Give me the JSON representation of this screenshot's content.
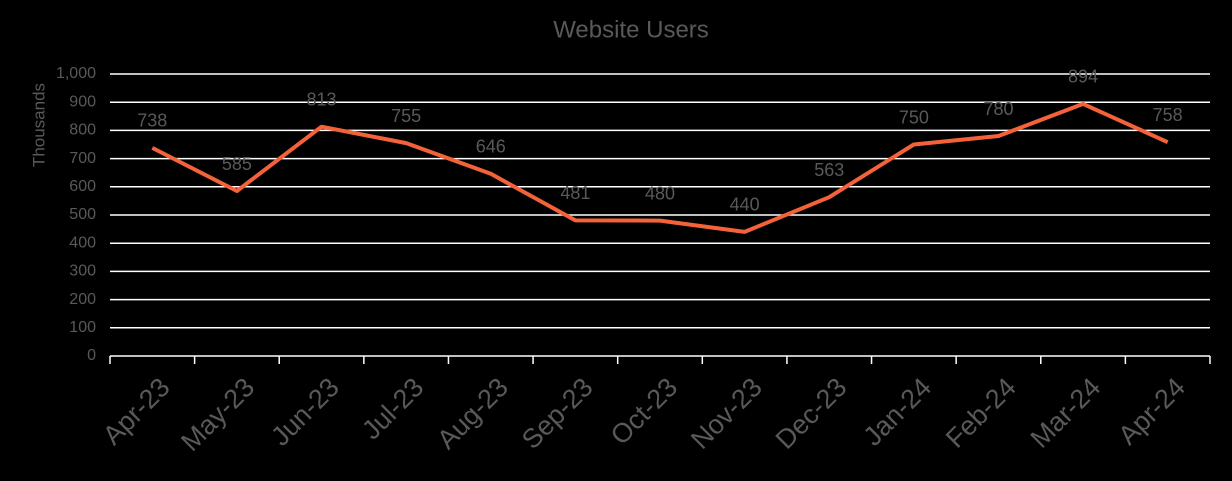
{
  "chart_data": {
    "type": "line",
    "title": "Website Users",
    "y_label": "Thousands",
    "categories": [
      "Apr-23",
      "May-23",
      "Jun-23",
      "Jul-23",
      "Aug-23",
      "Sep-23",
      "Oct-23",
      "Nov-23",
      "Dec-23",
      "Jan-24",
      "Feb-24",
      "Mar-24",
      "Apr-24"
    ],
    "values": [
      738,
      585,
      813,
      755,
      646,
      481,
      480,
      440,
      563,
      750,
      780,
      894,
      758
    ],
    "color": "#f4623a",
    "ylim": [
      0,
      1000
    ],
    "yticks": [
      0,
      100,
      200,
      300,
      400,
      500,
      600,
      700,
      800,
      900,
      {
        "value": 1000,
        "label": "1,000"
      }
    ],
    "grid": true
  }
}
